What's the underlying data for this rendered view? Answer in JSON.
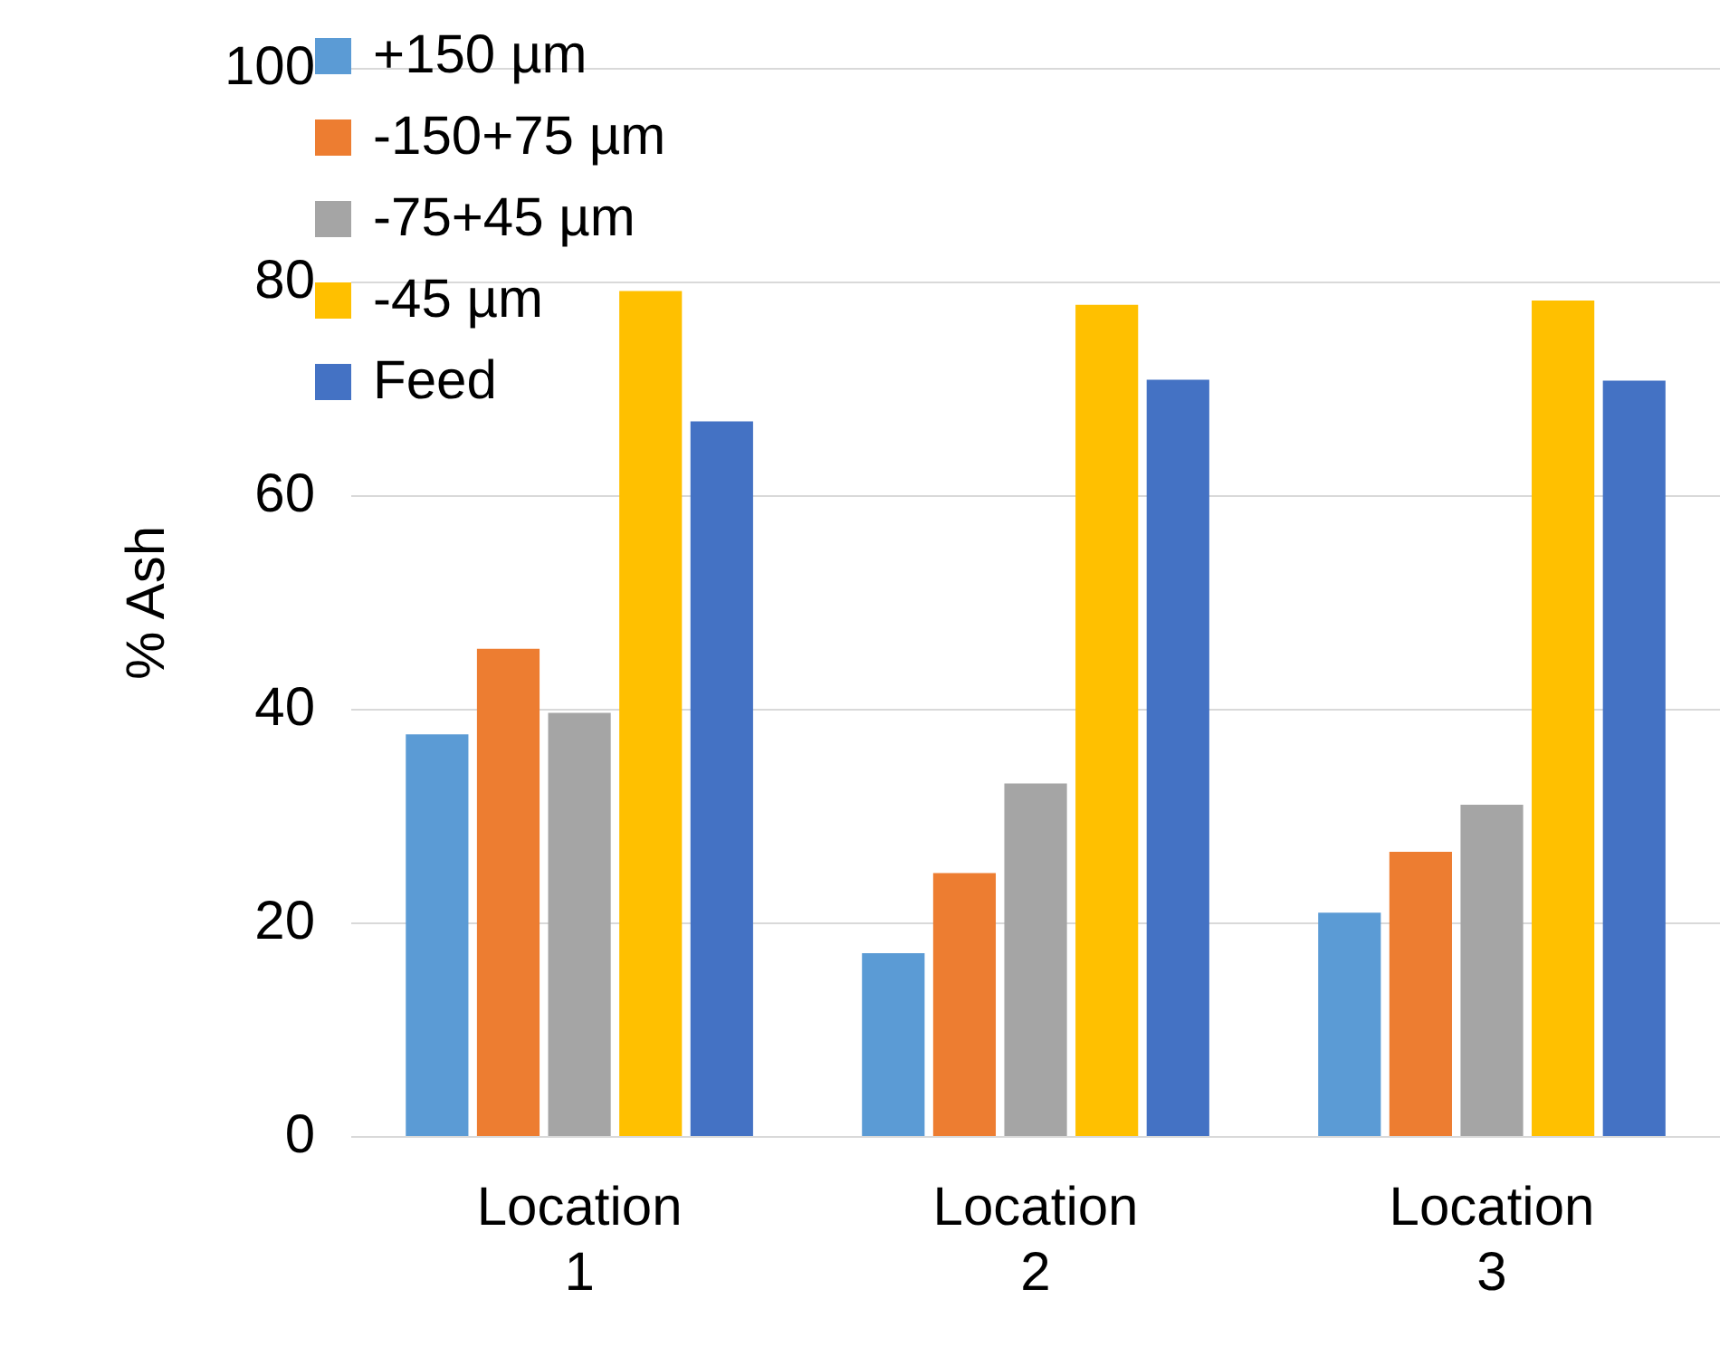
{
  "chart_data": {
    "type": "bar",
    "ylabel": "% Ash",
    "categories": [
      [
        "Location",
        "1"
      ],
      [
        "Location",
        "2"
      ],
      [
        "Location",
        "3"
      ]
    ],
    "series": [
      {
        "name": "+150 µm",
        "color": "#5b9bd5",
        "values": [
          37.7,
          17.2,
          21.0
        ]
      },
      {
        "name": "-150+75 µm",
        "color": "#ed7d31",
        "values": [
          45.7,
          24.7,
          26.7
        ]
      },
      {
        "name": "-75+45 µm",
        "color": "#a5a5a5",
        "values": [
          39.7,
          33.1,
          31.1
        ]
      },
      {
        "name": "-45 µm",
        "color": "#ffc000",
        "values": [
          79.2,
          77.9,
          78.3
        ]
      },
      {
        "name": "Feed",
        "color": "#4472c4",
        "values": [
          67.0,
          70.9,
          70.8
        ]
      }
    ],
    "ylim": [
      0,
      100
    ],
    "yticks": [
      0,
      20,
      40,
      60,
      80,
      100
    ],
    "grid": "y",
    "legend": "top left"
  }
}
